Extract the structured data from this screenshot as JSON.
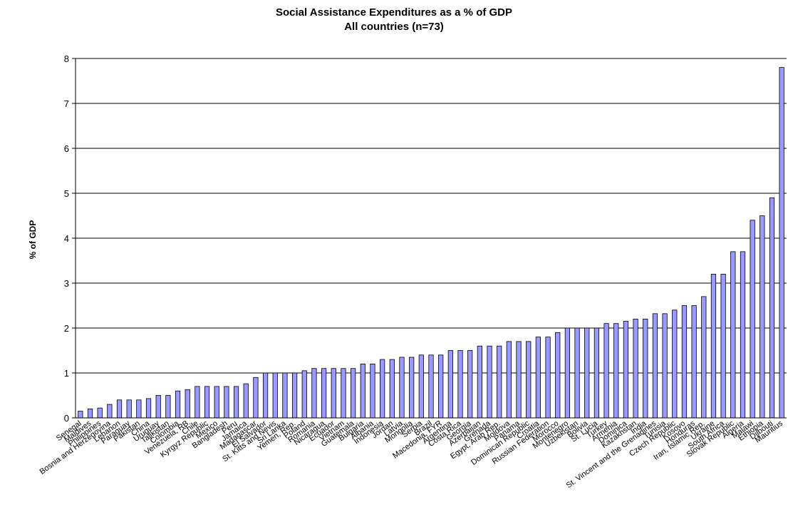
{
  "chart_data": {
    "type": "bar",
    "title": "Social Assistance Expenditures as a % of GDP",
    "subtitle": "All countries (n=73)",
    "ylabel": "% of GDP",
    "xlabel": "",
    "ylim": [
      0,
      8
    ],
    "yticks": [
      "0",
      "1",
      "2",
      "3",
      "4",
      "5",
      "6",
      "7",
      "8"
    ],
    "grid": true,
    "bar_color": "#9999ff",
    "categories": [
      "Senegal",
      "Maldives",
      "Philippines",
      "Bosnia and Herzegovina",
      "Lebanon",
      "Paraguay",
      "Pakistan",
      "China",
      "Uruguay",
      "Tajikistan",
      "Colombia",
      "Venezuela, RB",
      "Chile",
      "Kyrgyz Republic",
      "Mexico",
      "Bangladesh",
      "Peru",
      "Jamaica",
      "Madagascar",
      "El Salvador",
      "St. Kitts and Nevis",
      "Sri Lanka",
      "Yemen, Rep.",
      "Poland",
      "Romania",
      "Nicaragua",
      "Ecuador",
      "Vietnam",
      "Guatemala",
      "Bulgaria",
      "Albania",
      "Indonesia",
      "Jordan",
      "Latvia",
      "Mongolia",
      "Serbia",
      "Brazil",
      "Macedonia, FYR",
      "Argentina",
      "Costa Rica",
      "Georgia",
      "Azerbaijan",
      "Grenada",
      "Egypt, Arab Rep.",
      "Moldova",
      "Panama",
      "Dominican Republic",
      "Croatia",
      "Russian Federation",
      "Morocco",
      "Montenegro",
      "Uzbekistan",
      "Bolivia",
      "St. Lucia",
      "Turkey",
      "Armenia",
      "Dominica",
      "Kazakhstan",
      "India",
      "St. Vincent and the Grenadines",
      "Tunisia",
      "Czech Republic",
      "Kosovo",
      "Honduras",
      "Iran, Islamic Rep.",
      "Ukraine",
      "South Africa",
      "Slovak Republic",
      "Algeria",
      "Malawi",
      "Ethiopia",
      "Djibouti",
      "Mauritius"
    ],
    "values": [
      0.15,
      0.2,
      0.22,
      0.3,
      0.4,
      0.4,
      0.4,
      0.43,
      0.5,
      0.5,
      0.6,
      0.63,
      0.7,
      0.7,
      0.7,
      0.7,
      0.7,
      0.76,
      0.9,
      1.0,
      1.0,
      1.0,
      1.0,
      1.05,
      1.1,
      1.1,
      1.1,
      1.1,
      1.1,
      1.2,
      1.2,
      1.3,
      1.3,
      1.35,
      1.35,
      1.4,
      1.4,
      1.4,
      1.5,
      1.5,
      1.5,
      1.6,
      1.6,
      1.6,
      1.7,
      1.7,
      1.7,
      1.8,
      1.8,
      1.9,
      2.0,
      2.0,
      2.0,
      2.0,
      2.1,
      2.1,
      2.15,
      2.2,
      2.2,
      2.32,
      2.32,
      2.4,
      2.5,
      2.5,
      2.7,
      3.2,
      3.2,
      3.7,
      3.7,
      4.4,
      4.5,
      4.9,
      7.8
    ]
  }
}
